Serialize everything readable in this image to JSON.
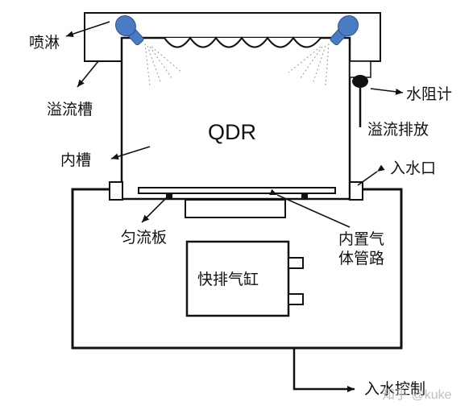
{
  "diagram": {
    "main_label": "QDR",
    "labels": {
      "spray": "喷淋",
      "overflow_trough": "溢流槽",
      "inner_tank": "内槽",
      "resistivity_meter": "水阻计",
      "overflow_drain": "溢流排放",
      "water_inlet": "入水口",
      "flow_plate": "匀流板",
      "gas_pipe": "内置气\n体管路",
      "fast_drain_cylinder": "快排气缸",
      "inlet_control": "入水控制"
    },
    "watermark": "知乎 @kuke",
    "colors": {
      "nozzle": "#4a7cc4",
      "line": "#111111"
    }
  }
}
